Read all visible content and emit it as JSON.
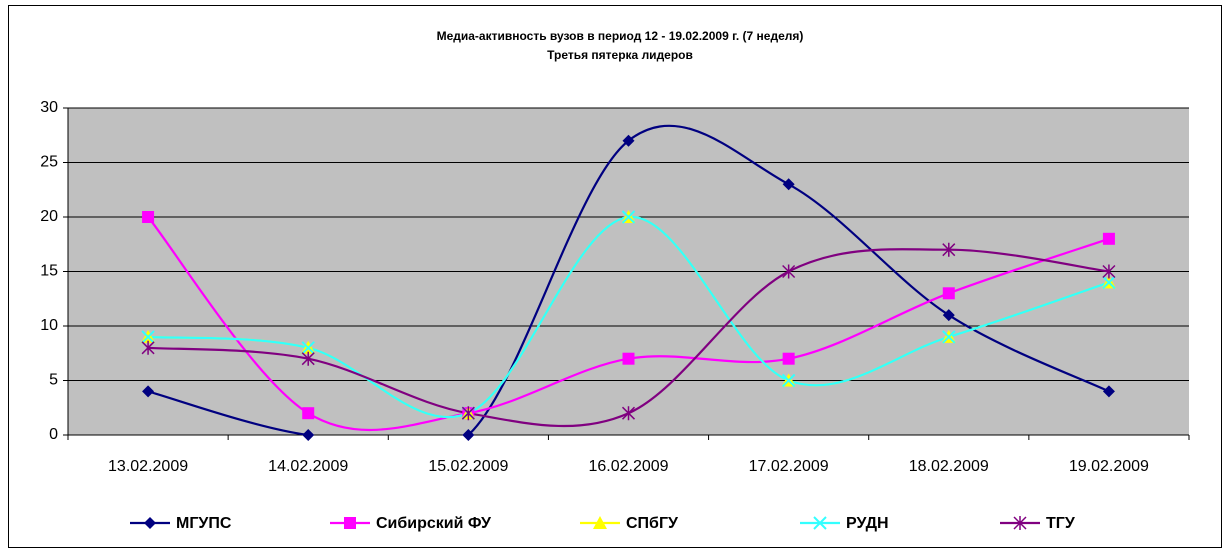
{
  "chart_data": {
    "type": "line",
    "smooth": true,
    "title": "Медиа-активность вузов в период 12 - 19.02.2009 г. (7 неделя)",
    "subtitle": "Третья пятерка лидеров",
    "categories": [
      "13.02.2009",
      "14.02.2009",
      "15.02.2009",
      "16.02.2009",
      "17.02.2009",
      "18.02.2009",
      "19.02.2009"
    ],
    "series": [
      {
        "name": "МГУПС",
        "color": "#000080",
        "marker": "diamond",
        "values": [
          4,
          0,
          0,
          27,
          23,
          11,
          4
        ]
      },
      {
        "name": "Сибирский ФУ",
        "color": "#ff00ff",
        "marker": "square",
        "values": [
          20,
          2,
          2,
          7,
          7,
          13,
          18
        ]
      },
      {
        "name": "СПбГУ",
        "color": "#ffff00",
        "marker": "triangle",
        "values": [
          9,
          8,
          2,
          20,
          5,
          9,
          14
        ]
      },
      {
        "name": "РУДН",
        "color": "#33ffff",
        "marker": "cross",
        "values": [
          9,
          8,
          2,
          20,
          5,
          9,
          14
        ]
      },
      {
        "name": "ТГУ",
        "color": "#800080",
        "marker": "star",
        "values": [
          8,
          7,
          2,
          2,
          15,
          17,
          15
        ]
      }
    ],
    "ylim": [
      0,
      30
    ],
    "yticks": [
      0,
      5,
      10,
      15,
      20,
      25,
      30
    ],
    "grid": true,
    "legend": "bottom"
  }
}
